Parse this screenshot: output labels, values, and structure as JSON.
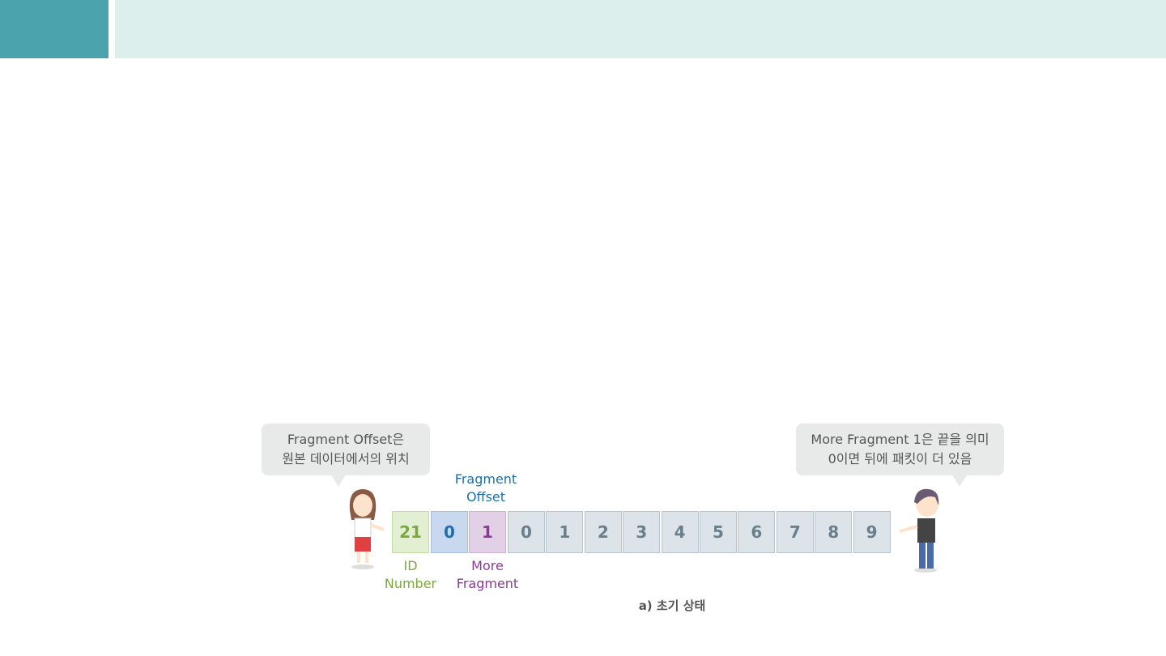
{
  "bubble_left": {
    "line1": "Fragment Offset은",
    "line2": "원본 데이터에서의 위치"
  },
  "bubble_right": {
    "line1": "More Fragment 1은 끝을 의미",
    "line2": "0이면 뒤에 패킷이 더 있음"
  },
  "labels": {
    "fragment_offset_1": "Fragment",
    "fragment_offset_2": "Offset",
    "id_1": "ID",
    "id_2": "Number",
    "more_1": "More",
    "more_2": "Fragment"
  },
  "header_cells": {
    "id": "21",
    "offset": "0",
    "more": "1"
  },
  "data_cells": [
    "0",
    "1",
    "2",
    "3",
    "4",
    "5",
    "6",
    "7",
    "8",
    "9"
  ],
  "caption": "a) 초기 상태",
  "colors": {
    "id": "#7aab3a",
    "offset": "#1f6fb0",
    "more": "#8a3a96"
  }
}
